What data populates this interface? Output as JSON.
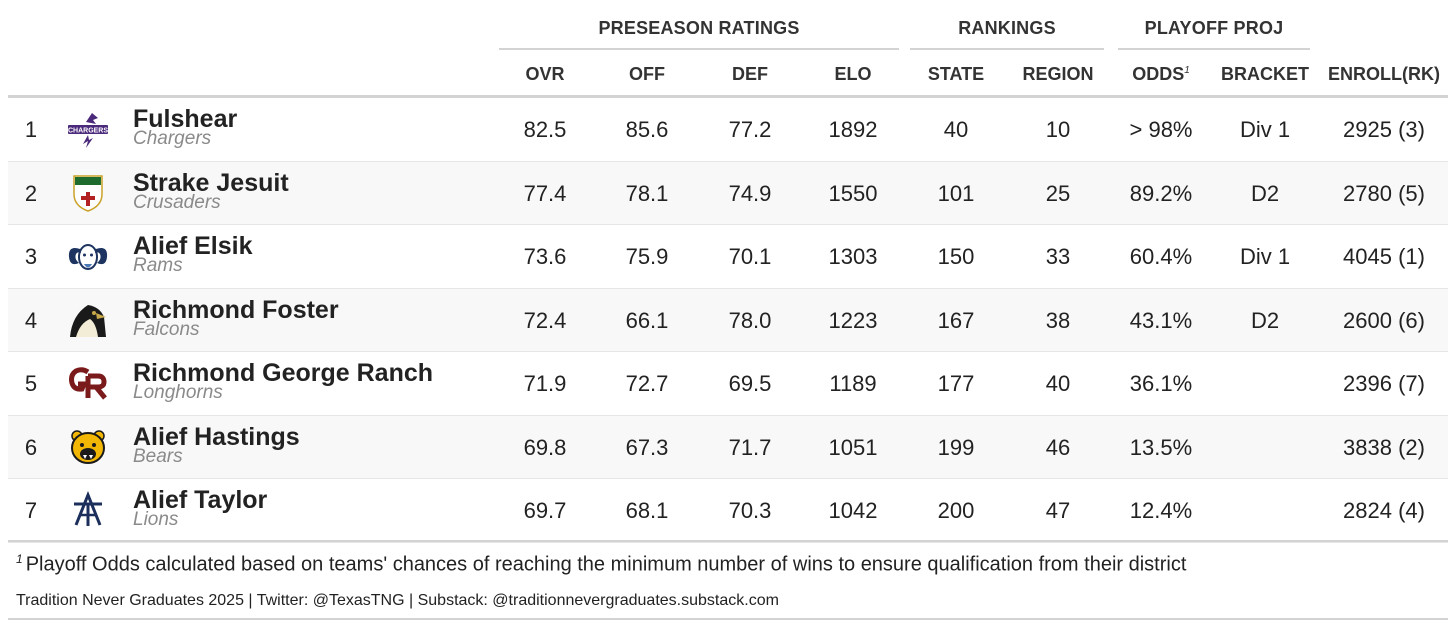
{
  "spanners": {
    "ratings": "PRESEASON RATINGS",
    "rankings": "RANKINGS",
    "playoff": "PLAYOFF PROJ"
  },
  "columns": {
    "ovr": "OVR",
    "off": "OFF",
    "def": "DEF",
    "elo": "ELO",
    "state": "STATE",
    "region": "REGION",
    "odds": "ODDS",
    "odds_note": "1",
    "bracket": "BRACKET",
    "enroll": "ENROLL(RK)"
  },
  "rows": [
    {
      "rank": "1",
      "name": "Fulshear",
      "mascot": "Chargers",
      "logo": "chargers-logo",
      "ovr": "82.5",
      "off": "85.6",
      "def": "77.2",
      "elo": "1892",
      "state": "40",
      "region": "10",
      "odds": "> 98%",
      "bracket": "Div 1",
      "enroll": "2925 (3)"
    },
    {
      "rank": "2",
      "name": "Strake Jesuit",
      "mascot": "Crusaders",
      "logo": "crusaders-shield-logo",
      "ovr": "77.4",
      "off": "78.1",
      "def": "74.9",
      "elo": "1550",
      "state": "101",
      "region": "25",
      "odds": "89.2%",
      "bracket": "D2",
      "enroll": "2780 (5)"
    },
    {
      "rank": "3",
      "name": "Alief Elsik",
      "mascot": "Rams",
      "logo": "ram-logo",
      "ovr": "73.6",
      "off": "75.9",
      "def": "70.1",
      "elo": "1303",
      "state": "150",
      "region": "33",
      "odds": "60.4%",
      "bracket": "Div 1",
      "enroll": "4045 (1)"
    },
    {
      "rank": "4",
      "name": "Richmond Foster",
      "mascot": "Falcons",
      "logo": "falcon-logo",
      "ovr": "72.4",
      "off": "66.1",
      "def": "78.0",
      "elo": "1223",
      "state": "167",
      "region": "38",
      "odds": "43.1%",
      "bracket": "D2",
      "enroll": "2600 (6)"
    },
    {
      "rank": "5",
      "name": "Richmond George Ranch",
      "mascot": "Longhorns",
      "logo": "gr-monogram-logo",
      "ovr": "71.9",
      "off": "72.7",
      "def": "69.5",
      "elo": "1189",
      "state": "177",
      "region": "40",
      "odds": "36.1%",
      "bracket": "",
      "enroll": "2396 (7)"
    },
    {
      "rank": "6",
      "name": "Alief Hastings",
      "mascot": "Bears",
      "logo": "bear-logo",
      "ovr": "69.8",
      "off": "67.3",
      "def": "71.7",
      "elo": "1051",
      "state": "199",
      "region": "46",
      "odds": "13.5%",
      "bracket": "",
      "enroll": "3838 (2)"
    },
    {
      "rank": "7",
      "name": "Alief Taylor",
      "mascot": "Lions",
      "logo": "at-monogram-logo",
      "ovr": "69.7",
      "off": "68.1",
      "def": "70.3",
      "elo": "1042",
      "state": "200",
      "region": "47",
      "odds": "12.4%",
      "bracket": "",
      "enroll": "2824 (4)"
    }
  ],
  "footnote": {
    "marker": "1",
    "text": "Playoff Odds calculated based on teams' chances of reaching the minimum number of wins to ensure qualification from their district"
  },
  "source": "Tradition Never Graduates 2025 | Twitter: @TexasTNG | Substack: @traditionnevergraduates.substack.com",
  "colors": {
    "chargers_purple": "#4b2a7b",
    "crusaders_green": "#1f6b2e",
    "crusaders_red": "#b22222",
    "rams_navy": "#1d3461",
    "falcon_black": "#1a1a1a",
    "falcon_gold": "#c8a84a",
    "gr_maroon": "#7a1a1a",
    "bears_gold": "#f2b705",
    "lions_navy": "#1c2f5c"
  }
}
